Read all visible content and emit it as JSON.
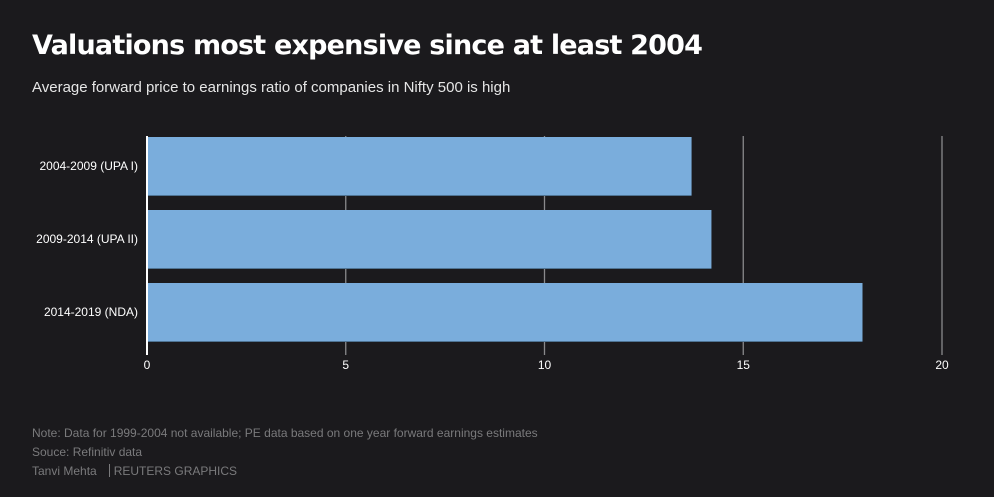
{
  "header": {
    "title": "Valuations most expensive since at least 2004",
    "subtitle": "Average forward price to earnings ratio of companies in Nifty 500 is high"
  },
  "chart_data": {
    "type": "bar",
    "orientation": "horizontal",
    "title": "Valuations most expensive since at least 2004",
    "subtitle": "Average forward price to earnings ratio of companies in Nifty 500 is high",
    "categories": [
      "2004-2009 (UPA I)",
      "2009-2014 (UPA II)",
      "2014-2019 (NDA)"
    ],
    "values": [
      13.7,
      14.2,
      18.0
    ],
    "xlabel": "",
    "ylabel": "",
    "xlim": [
      0,
      20
    ],
    "xticks": [
      0,
      5,
      10,
      15,
      20
    ],
    "xtick_labels": [
      "0",
      "5",
      "10",
      "15",
      "20"
    ],
    "grid": true,
    "legend": "none",
    "bar_color": "#7aaddc",
    "grid_color": "#8a8a8c",
    "axis_color": "#ffffff"
  },
  "footer": {
    "note": "Note: Data for 1999-2004 not available; PE data based on one year forward earnings estimates",
    "source": "Souce: Refinitiv data",
    "author": "Tanvi Mehta",
    "publisher": "REUTERS GRAPHICS"
  }
}
